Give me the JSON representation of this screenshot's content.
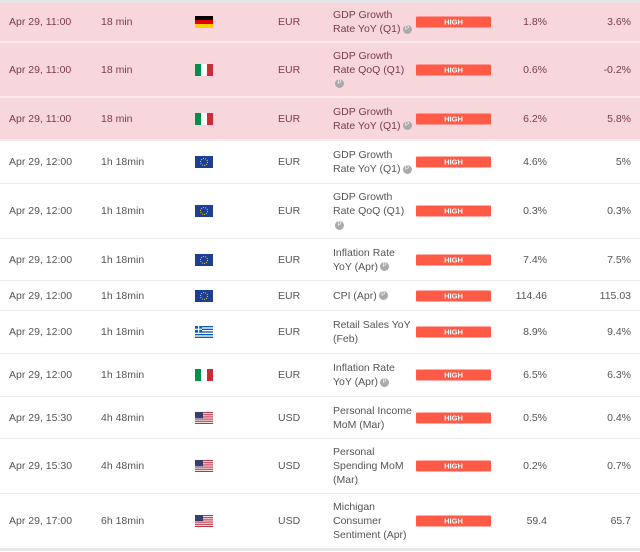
{
  "rows": [
    {
      "date": "Apr 29, 11:00",
      "time": "18 min",
      "flag": "germany",
      "currency": "EUR",
      "event": "GDP Growth Rate YoY (Q1)",
      "prelim": true,
      "impact": "HIGH",
      "actual": "1.8%",
      "forecast": "3.6%",
      "highlight": true
    },
    {
      "date": "Apr 29, 11:00",
      "time": "18 min",
      "flag": "italy",
      "currency": "EUR",
      "event": "GDP Growth Rate QoQ (Q1)",
      "prelim": true,
      "impact": "HIGH",
      "actual": "0.6%",
      "forecast": "-0.2%",
      "highlight": true
    },
    {
      "date": "Apr 29, 11:00",
      "time": "18 min",
      "flag": "italy",
      "currency": "EUR",
      "event": "GDP Growth Rate YoY (Q1)",
      "prelim": true,
      "impact": "HIGH",
      "actual": "6.2%",
      "forecast": "5.8%",
      "highlight": true
    },
    {
      "date": "Apr 29, 12:00",
      "time": "1h 18min",
      "flag": "eu",
      "currency": "EUR",
      "event": "GDP Growth Rate YoY (Q1)",
      "prelim": true,
      "impact": "HIGH",
      "actual": "4.6%",
      "forecast": "5%"
    },
    {
      "date": "Apr 29, 12:00",
      "time": "1h 18min",
      "flag": "eu",
      "currency": "EUR",
      "event": "GDP Growth Rate QoQ (Q1)",
      "prelim": true,
      "impact": "HIGH",
      "actual": "0.3%",
      "forecast": "0.3%"
    },
    {
      "date": "Apr 29, 12:00",
      "time": "1h 18min",
      "flag": "eu",
      "currency": "EUR",
      "event": "Inflation Rate YoY (Apr)",
      "prelim": true,
      "impact": "HIGH",
      "actual": "7.4%",
      "forecast": "7.5%"
    },
    {
      "date": "Apr 29, 12:00",
      "time": "1h 18min",
      "flag": "eu",
      "currency": "EUR",
      "event": "CPI (Apr)",
      "prelim": true,
      "impact": "HIGH",
      "actual": "114.46",
      "forecast": "115.03"
    },
    {
      "date": "Apr 29, 12:00",
      "time": "1h 18min",
      "flag": "greece",
      "currency": "EUR",
      "event": "Retail Sales YoY (Feb)",
      "prelim": false,
      "impact": "HIGH",
      "actual": "8.9%",
      "forecast": "9.4%"
    },
    {
      "date": "Apr 29, 12:00",
      "time": "1h 18min",
      "flag": "italy",
      "currency": "EUR",
      "event": "Inflation Rate YoY (Apr)",
      "prelim": true,
      "impact": "HIGH",
      "actual": "6.5%",
      "forecast": "6.3%"
    },
    {
      "date": "Apr 29, 15:30",
      "time": "4h 48min",
      "flag": "usa",
      "currency": "USD",
      "event": "Personal Income MoM (Mar)",
      "prelim": false,
      "impact": "HIGH",
      "actual": "0.5%",
      "forecast": "0.4%"
    },
    {
      "date": "Apr 29, 15:30",
      "time": "4h 48min",
      "flag": "usa",
      "currency": "USD",
      "event": "Personal Spending MoM (Mar)",
      "prelim": false,
      "impact": "HIGH",
      "actual": "0.2%",
      "forecast": "0.7%"
    },
    {
      "date": "Apr 29, 17:00",
      "time": "6h 18min",
      "flag": "usa",
      "currency": "USD",
      "event": "Michigan Consumer Sentiment (Apr)",
      "prelim": false,
      "impact": "HIGH",
      "actual": "59.4",
      "forecast": "65.7"
    }
  ],
  "prelim_label": "P",
  "colors": {
    "impact_high": "#ff5a45",
    "highlight": "#f8d7dc"
  }
}
